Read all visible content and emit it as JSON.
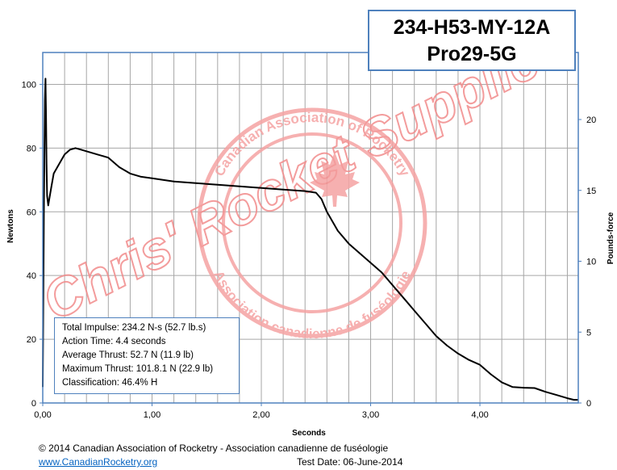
{
  "title_box": {
    "line1": "234-H53-MY-12A",
    "line2": "Pro29-5G"
  },
  "stats": [
    "Total Impulse: 234.2 N-s (52.7 lb.s)",
    "Action Time: 4.4 seconds",
    "Average Thrust: 52.7 N (11.9 lb)",
    "Maximum Thrust: 101.8.1 N (22.9 lb)",
    "Classification: 46.4% H"
  ],
  "watermark": {
    "main_text": "Chris' Rocket Supplies",
    "seal_top": "Canadian Association of Rocketry",
    "seal_bottom": "Association canadienne de fuséologie",
    "color": "#f28b8b"
  },
  "footer": {
    "copyright": "© 2014 Canadian Association of Rocketry - Association canadienne de fuséologie",
    "link": "www.CanadianRocketry.org",
    "test_date": "Test  Date: 06-June-2014"
  },
  "chart_data": {
    "type": "line",
    "xlabel": "Seconds",
    "ylabel": "Newtons",
    "y2label": "Pounds-force",
    "xlim": [
      0,
      4.9
    ],
    "ylim": [
      0,
      110
    ],
    "y2lim": [
      0,
      24.73
    ],
    "xticks": [
      0,
      1,
      2,
      3,
      4
    ],
    "xtick_labels": [
      "0,00",
      "1,00",
      "2,00",
      "3,00",
      "4,00"
    ],
    "yticks": [
      0,
      20,
      40,
      60,
      80,
      100
    ],
    "y2ticks": [
      0,
      5,
      10,
      15,
      20
    ],
    "x_minor_step": 0.2,
    "grid": true,
    "line_color": "#000000",
    "series": [
      {
        "x": [
          0.0,
          0.01,
          0.02,
          0.025,
          0.03,
          0.035,
          0.04,
          0.05,
          0.06,
          0.08,
          0.1,
          0.15,
          0.2,
          0.25,
          0.3,
          0.35,
          0.4,
          0.5,
          0.6,
          0.7,
          0.8,
          0.9,
          1.0,
          1.2,
          1.4,
          1.6,
          1.8,
          2.0,
          2.2,
          2.4,
          2.5,
          2.55,
          2.6,
          2.7,
          2.8,
          2.9,
          3.0,
          3.1,
          3.2,
          3.3,
          3.4,
          3.5,
          3.6,
          3.7,
          3.8,
          3.9,
          4.0,
          4.1,
          4.2,
          4.3,
          4.4,
          4.5,
          4.6,
          4.7,
          4.8,
          4.86,
          4.9
        ],
        "y": [
          5,
          60,
          95,
          101.8,
          90,
          75,
          65,
          62,
          64,
          68,
          72,
          75,
          78,
          79.5,
          80,
          79.5,
          79,
          78,
          77,
          74,
          72,
          71,
          70.5,
          69.5,
          69,
          68.5,
          68,
          67.5,
          67,
          66.5,
          66,
          64,
          60,
          54,
          50,
          47,
          44,
          41,
          37,
          33,
          29,
          25,
          21,
          18,
          15.5,
          13.5,
          12,
          9,
          6.5,
          5,
          4.8,
          4.7,
          3.5,
          2.5,
          1.5,
          1,
          1
        ]
      }
    ]
  }
}
